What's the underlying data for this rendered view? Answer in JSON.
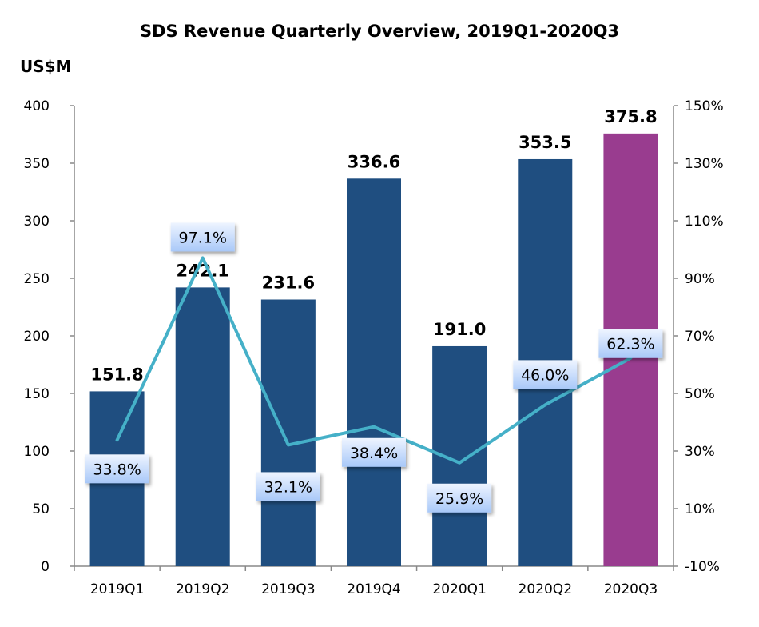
{
  "chart_data": {
    "type": "bar+line",
    "title": "SDS Revenue Quarterly Overview, 2019Q1-2020Q3",
    "ylabel": "US$M",
    "categories": [
      "2019Q1",
      "2019Q2",
      "2019Q3",
      "2019Q4",
      "2020Q1",
      "2020Q2",
      "2020Q3"
    ],
    "series": [
      {
        "type": "bar",
        "values": [
          151.8,
          242.1,
          231.6,
          336.6,
          191.0,
          353.5,
          375.8
        ],
        "labels": [
          "151.8",
          "242.1",
          "231.6",
          "336.6",
          "191.0",
          "353.5",
          "375.8"
        ],
        "colors": [
          "#1f4e80",
          "#1f4e80",
          "#1f4e80",
          "#1f4e80",
          "#1f4e80",
          "#1f4e80",
          "#993c8f"
        ],
        "axis": "left"
      },
      {
        "type": "line",
        "values": [
          33.8,
          97.1,
          32.1,
          38.4,
          25.9,
          46.0,
          62.3
        ],
        "labels": [
          "33.8%",
          "97.1%",
          "32.1%",
          "38.4%",
          "25.9%",
          "46.0%",
          "62.3%"
        ],
        "color": "#45b0c8",
        "axis": "right"
      }
    ],
    "ylim_left": [
      0,
      400
    ],
    "yticks_left": [
      "0",
      "50",
      "100",
      "150",
      "200",
      "250",
      "300",
      "350",
      "400"
    ],
    "ylim_right": [
      -10,
      150
    ],
    "yticks_right": [
      "-10%",
      "10%",
      "30%",
      "50%",
      "70%",
      "90%",
      "110%",
      "130%",
      "150%"
    ],
    "grid": false,
    "legend": "none"
  }
}
